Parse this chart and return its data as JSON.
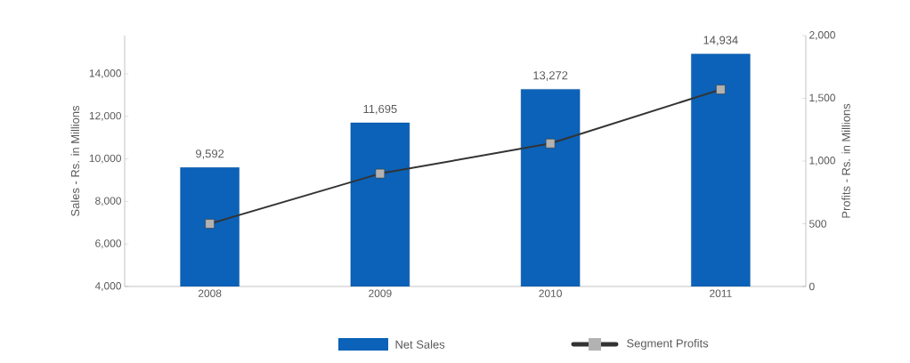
{
  "chart_data": {
    "type": "bar",
    "categories": [
      "2008",
      "2009",
      "2010",
      "2011"
    ],
    "ylabel": "Sales - Rs. in Millions",
    "y2label": "Profits - Rs. in Millions",
    "ylim": [
      4000,
      15800
    ],
    "yticks": [
      {
        "value": 4000,
        "label": "4,000"
      },
      {
        "value": 6000,
        "label": "6,000"
      },
      {
        "value": 8000,
        "label": "8,000"
      },
      {
        "value": 10000,
        "label": "10,000"
      },
      {
        "value": 12000,
        "label": "12,000"
      },
      {
        "value": 14000,
        "label": "14,000"
      }
    ],
    "y2lim": [
      0,
      2000
    ],
    "y2ticks": [
      0,
      500,
      {
        "value": 1000,
        "label": "1,000"
      },
      {
        "value": 1500,
        "label": "1,500"
      },
      {
        "value": 2000,
        "label": "2,000"
      }
    ],
    "series": [
      {
        "name": "Net Sales",
        "color": "#0b62b8",
        "values": [
          9592,
          11695,
          13272,
          14934
        ],
        "value_labels": [
          "9,592",
          "11,695",
          "13,272",
          "14,934"
        ]
      },
      {
        "name": "Segment Profits",
        "type": "line",
        "axis": "y2",
        "color": "#333333",
        "values": [
          500,
          900,
          1140,
          1570
        ]
      }
    ],
    "marker": "square",
    "grid": false,
    "legend": "bottom"
  }
}
